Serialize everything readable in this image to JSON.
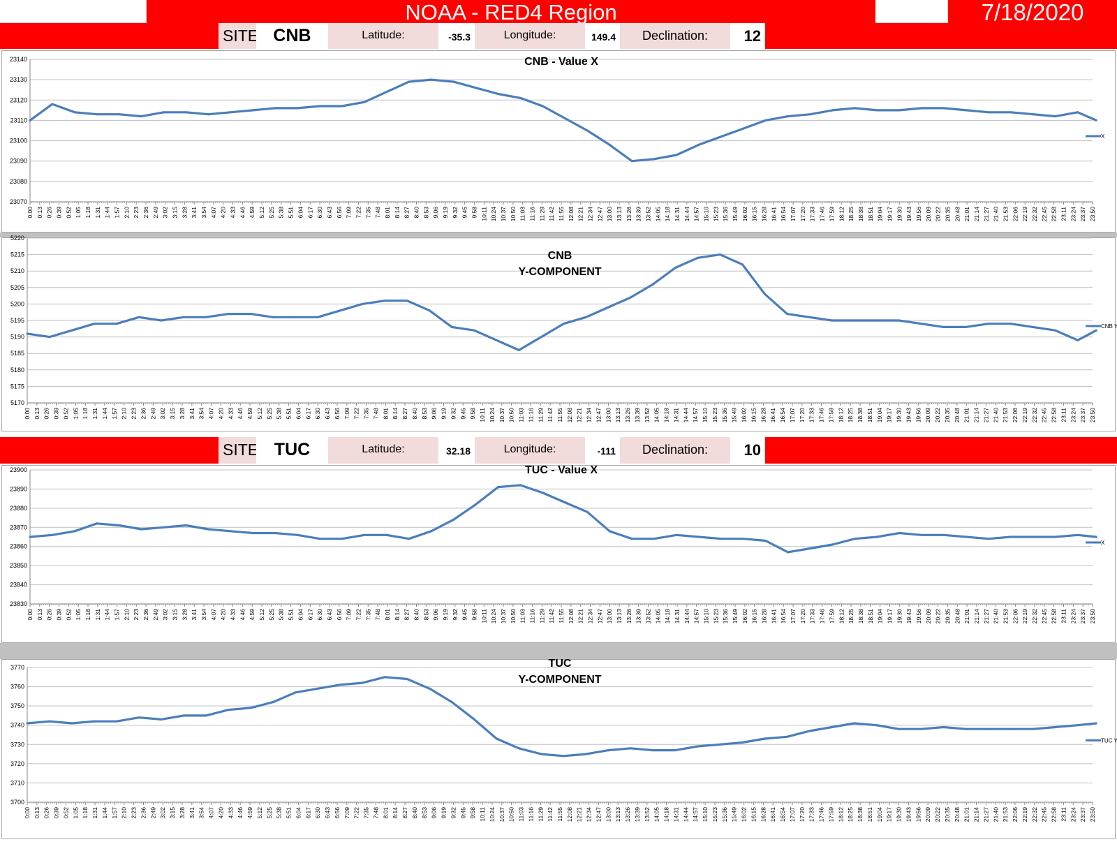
{
  "header": {
    "title": "NOAA - RED4 Region",
    "date": "7/18/2020"
  },
  "sites": [
    {
      "site_label": "SITE:",
      "site": "CNB",
      "lat_label": "Latitude:",
      "lat": "-35.3",
      "lon_label": "Longitude:",
      "lon": "149.4",
      "decl_label": "Declination:",
      "decl": "12"
    },
    {
      "site_label": "SITE:",
      "site": "TUC",
      "lat_label": "Latitude:",
      "lat": "32.18",
      "lon_label": "Longitude:",
      "lon": "-111",
      "decl_label": "Declination:",
      "decl": "10"
    }
  ],
  "colors": {
    "banner_red": "#ff0000",
    "label_pink": "#f2dcdb",
    "line_blue": "#4a7ebb",
    "grid": "#bfbfbf"
  },
  "chart_data": [
    {
      "type": "line",
      "title": "CNB - Value X",
      "xlabel": "",
      "ylabel": "",
      "ylim": [
        23070,
        23140
      ],
      "yticks": [
        23070,
        23080,
        23090,
        23100,
        23110,
        23120,
        23130,
        23140
      ],
      "x_range": [
        "0:00",
        "23:50"
      ],
      "legend": {
        "entry": "X",
        "position": "right"
      },
      "grid": true,
      "series": [
        {
          "name": "X",
          "x": [
            "0:00",
            "0:30",
            "1:00",
            "1:30",
            "2:00",
            "2:30",
            "3:00",
            "3:30",
            "4:00",
            "4:30",
            "5:00",
            "5:30",
            "6:00",
            "6:30",
            "7:00",
            "7:30",
            "8:00",
            "8:30",
            "9:00",
            "9:30",
            "10:00",
            "10:30",
            "11:00",
            "11:30",
            "12:00",
            "12:30",
            "13:00",
            "13:30",
            "14:00",
            "14:30",
            "15:00",
            "15:30",
            "16:00",
            "16:30",
            "17:00",
            "17:30",
            "18:00",
            "18:30",
            "19:00",
            "19:30",
            "20:00",
            "20:30",
            "21:00",
            "21:30",
            "22:00",
            "22:30",
            "23:00",
            "23:30",
            "23:55"
          ],
          "values": [
            23110,
            23118,
            23114,
            23113,
            23113,
            23112,
            23114,
            23114,
            23113,
            23114,
            23115,
            23116,
            23116,
            23117,
            23117,
            23119,
            23124,
            23129,
            23130,
            23129,
            23126,
            23123,
            23121,
            23117,
            23111,
            23105,
            23098,
            23090,
            23091,
            23093,
            23098,
            23102,
            23106,
            23110,
            23112,
            23113,
            23115,
            23116,
            23115,
            23115,
            23116,
            23116,
            23115,
            23114,
            23114,
            23113,
            23112,
            23114,
            23110
          ]
        }
      ]
    },
    {
      "type": "line",
      "title": "CNB\nY-COMPONENT",
      "xlabel": "",
      "ylabel": "",
      "ylim": [
        5170,
        5220
      ],
      "yticks": [
        5170,
        5175,
        5180,
        5185,
        5190,
        5195,
        5200,
        5205,
        5210,
        5215,
        5220
      ],
      "x_range": [
        "0:00",
        "23:50"
      ],
      "legend": {
        "entry": "CNB Y",
        "position": "right"
      },
      "grid": true,
      "series": [
        {
          "name": "CNB Y",
          "x": [
            "0:00",
            "0:30",
            "1:00",
            "1:30",
            "2:00",
            "2:30",
            "3:00",
            "3:30",
            "4:00",
            "4:30",
            "5:00",
            "5:30",
            "6:00",
            "6:30",
            "7:00",
            "7:30",
            "8:00",
            "8:30",
            "9:00",
            "9:30",
            "10:00",
            "10:30",
            "11:00",
            "11:30",
            "12:00",
            "12:30",
            "13:00",
            "13:30",
            "14:00",
            "14:30",
            "15:00",
            "15:30",
            "16:00",
            "16:30",
            "17:00",
            "17:30",
            "18:00",
            "18:30",
            "19:00",
            "19:30",
            "20:00",
            "20:30",
            "21:00",
            "21:30",
            "22:00",
            "22:30",
            "23:00",
            "23:30",
            "23:55"
          ],
          "values": [
            5191,
            5190,
            5192,
            5194,
            5194,
            5196,
            5195,
            5196,
            5196,
            5197,
            5197,
            5196,
            5196,
            5196,
            5198,
            5200,
            5201,
            5201,
            5198,
            5193,
            5192,
            5189,
            5186,
            5190,
            5194,
            5196,
            5199,
            5202,
            5206,
            5211,
            5214,
            5215,
            5212,
            5203,
            5197,
            5196,
            5195,
            5195,
            5195,
            5195,
            5194,
            5193,
            5193,
            5194,
            5194,
            5193,
            5192,
            5189,
            5192
          ]
        }
      ]
    },
    {
      "type": "line",
      "title": "TUC - Value X",
      "xlabel": "",
      "ylabel": "",
      "ylim": [
        23830,
        23900
      ],
      "yticks": [
        23830,
        23840,
        23850,
        23860,
        23870,
        23880,
        23890,
        23900
      ],
      "x_range": [
        "0:00",
        "23:50"
      ],
      "legend": {
        "entry": "X",
        "position": "right"
      },
      "grid": true,
      "series": [
        {
          "name": "X",
          "x": [
            "0:00",
            "0:30",
            "1:00",
            "1:30",
            "2:00",
            "2:30",
            "3:00",
            "3:30",
            "4:00",
            "4:30",
            "5:00",
            "5:30",
            "6:00",
            "6:30",
            "7:00",
            "7:30",
            "8:00",
            "8:30",
            "9:00",
            "9:30",
            "10:00",
            "10:30",
            "11:00",
            "11:30",
            "12:00",
            "12:30",
            "13:00",
            "13:30",
            "14:00",
            "14:30",
            "15:00",
            "15:30",
            "16:00",
            "16:30",
            "17:00",
            "17:30",
            "18:00",
            "18:30",
            "19:00",
            "19:30",
            "20:00",
            "20:30",
            "21:00",
            "21:30",
            "22:00",
            "22:30",
            "23:00",
            "23:30",
            "23:55"
          ],
          "values": [
            23865,
            23866,
            23868,
            23872,
            23871,
            23869,
            23870,
            23871,
            23869,
            23868,
            23867,
            23867,
            23866,
            23864,
            23864,
            23866,
            23866,
            23864,
            23868,
            23874,
            23882,
            23891,
            23892,
            23888,
            23883,
            23878,
            23868,
            23864,
            23864,
            23866,
            23865,
            23864,
            23864,
            23863,
            23857,
            23859,
            23861,
            23864,
            23865,
            23867,
            23866,
            23866,
            23865,
            23864,
            23865,
            23865,
            23865,
            23866,
            23865
          ]
        }
      ]
    },
    {
      "type": "line",
      "title": "TUC\nY-COMPONENT",
      "xlabel": "",
      "ylabel": "",
      "ylim": [
        3700,
        3770
      ],
      "yticks": [
        3700,
        3710,
        3720,
        3730,
        3740,
        3750,
        3760,
        3770
      ],
      "x_range": [
        "0:00",
        "23:50"
      ],
      "legend": {
        "entry": "TUC Y",
        "position": "right"
      },
      "grid": true,
      "series": [
        {
          "name": "TUC Y",
          "x": [
            "0:00",
            "0:30",
            "1:00",
            "1:30",
            "2:00",
            "2:30",
            "3:00",
            "3:30",
            "4:00",
            "4:30",
            "5:00",
            "5:30",
            "6:00",
            "6:30",
            "7:00",
            "7:30",
            "8:00",
            "8:30",
            "9:00",
            "9:30",
            "10:00",
            "10:30",
            "11:00",
            "11:30",
            "12:00",
            "12:30",
            "13:00",
            "13:30",
            "14:00",
            "14:30",
            "15:00",
            "15:30",
            "16:00",
            "16:30",
            "17:00",
            "17:30",
            "18:00",
            "18:30",
            "19:00",
            "19:30",
            "20:00",
            "20:30",
            "21:00",
            "21:30",
            "22:00",
            "22:30",
            "23:00",
            "23:30",
            "23:55"
          ],
          "values": [
            3741,
            3742,
            3741,
            3742,
            3742,
            3744,
            3743,
            3745,
            3745,
            3748,
            3749,
            3752,
            3757,
            3759,
            3761,
            3762,
            3765,
            3764,
            3759,
            3752,
            3743,
            3733,
            3728,
            3725,
            3724,
            3725,
            3727,
            3728,
            3727,
            3727,
            3729,
            3730,
            3731,
            3733,
            3734,
            3737,
            3739,
            3741,
            3740,
            3738,
            3738,
            3739,
            3738,
            3738,
            3738,
            3738,
            3739,
            3740,
            3741
          ]
        }
      ]
    }
  ]
}
